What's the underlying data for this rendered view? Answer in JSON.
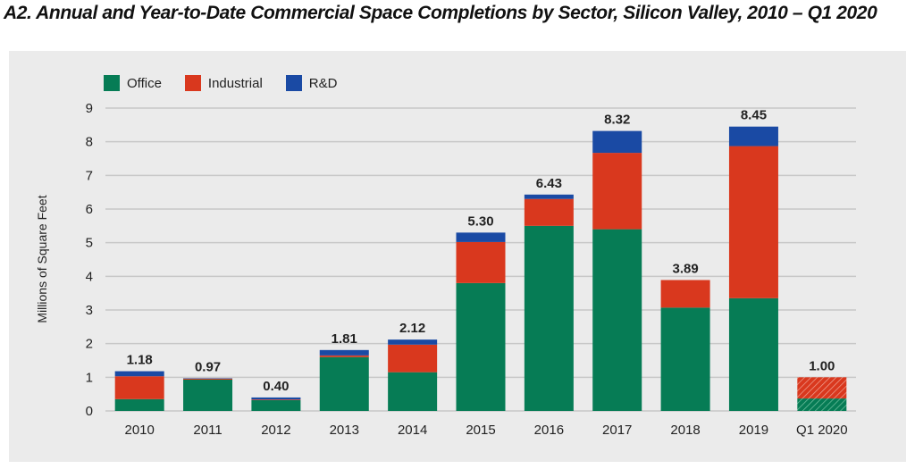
{
  "colors": {
    "office": "#067c55",
    "industrial": "#d9381e",
    "rd": "#1a4aa4",
    "grid": "#c8c8c8",
    "panel": "#ebebeb"
  },
  "chart_data": {
    "type": "bar",
    "stacked": true,
    "title": "A2. Annual and Year-to-Date Commercial Space Completions by Sector, Silicon Valley, 2010 – Q1 2020",
    "ylabel": "Millions of Square Feet",
    "xlabel": "",
    "ylim": [
      0,
      9
    ],
    "yticks": [
      "0",
      "1",
      "2",
      "3",
      "4",
      "5",
      "6",
      "7",
      "8",
      "9"
    ],
    "grid": "horizontal",
    "legend_position": "top-left",
    "categories": [
      "2010",
      "2011",
      "2012",
      "2013",
      "2014",
      "2015",
      "2016",
      "2017",
      "2018",
      "2019",
      "Q1 2020"
    ],
    "series": [
      {
        "name": "Office",
        "color_key": "office",
        "values": [
          0.35,
          0.93,
          0.32,
          1.6,
          1.15,
          3.8,
          5.5,
          5.4,
          3.07,
          3.35,
          0.37
        ]
      },
      {
        "name": "Industrial",
        "color_key": "industrial",
        "values": [
          0.68,
          0.03,
          0.02,
          0.05,
          0.82,
          1.22,
          0.8,
          2.27,
          0.82,
          4.52,
          0.63
        ]
      },
      {
        "name": "R&D",
        "color_key": "rd",
        "values": [
          0.15,
          0.01,
          0.06,
          0.16,
          0.15,
          0.28,
          0.13,
          0.65,
          0.0,
          0.58,
          0.0
        ]
      }
    ],
    "totals": [
      "1.18",
      "0.97",
      "0.40",
      "1.81",
      "2.12",
      "5.30",
      "6.43",
      "8.32",
      "3.89",
      "8.45",
      "1.00"
    ],
    "hatched_categories": [
      "Q1 2020"
    ]
  }
}
